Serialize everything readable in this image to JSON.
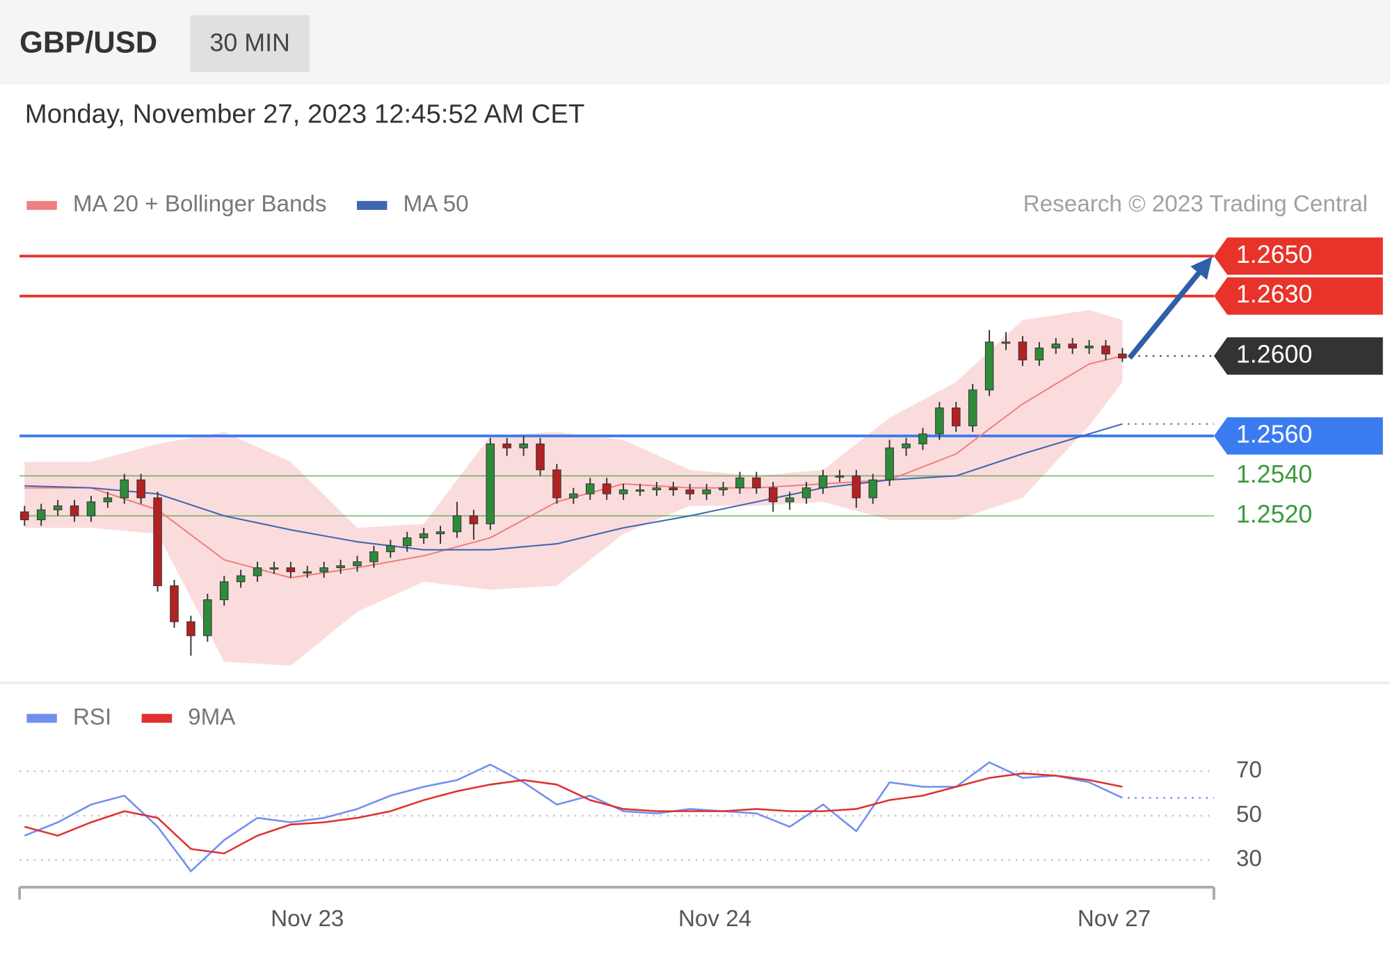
{
  "header": {
    "symbol": "GBP/USD",
    "interval": "30 MIN",
    "timestamp": "Monday, November 27, 2023 12:45:52 AM CET"
  },
  "chart_data": [
    {
      "type": "candlestick",
      "copyright": "Research © 2023 Trading Central",
      "xlim": [
        -0.3,
        71.5
      ],
      "ylim": [
        1.244,
        1.2658
      ],
      "up_color": "#2e8b3a",
      "down_color": "#b22222",
      "open": [
        1.2522,
        1.2518,
        1.2523,
        1.2525,
        1.252,
        1.2527,
        1.2529,
        1.2538,
        1.2529,
        1.2485,
        1.2467,
        1.246,
        1.2478,
        1.2487,
        1.249,
        1.2494,
        1.2494,
        1.2492,
        1.2492,
        1.2494,
        1.2495,
        1.2497,
        1.2502,
        1.2505,
        1.2509,
        1.2511,
        1.2512,
        1.252,
        1.2516,
        1.2556,
        1.2554,
        1.2556,
        1.2543,
        1.2529,
        1.2531,
        1.2536,
        1.2531,
        1.2533,
        1.2533,
        1.2534,
        1.2533,
        1.2531,
        1.2533,
        1.2534,
        1.2539,
        1.2534,
        1.2527,
        1.2529,
        1.2534,
        1.254,
        1.254,
        1.2529,
        1.2538,
        1.2554,
        1.2556,
        1.2561,
        1.2574,
        1.2565,
        1.2583,
        1.2607,
        1.2607,
        1.2598,
        1.2604,
        1.2606,
        1.2604,
        1.2605,
        1.2601
      ],
      "high": [
        1.2525,
        1.2526,
        1.2528,
        1.2528,
        1.253,
        1.2532,
        1.2541,
        1.2541,
        1.2532,
        1.2488,
        1.247,
        1.2481,
        1.249,
        1.2493,
        1.2497,
        1.2497,
        1.2497,
        1.2495,
        1.2497,
        1.2498,
        1.25,
        1.2505,
        1.2508,
        1.2512,
        1.2514,
        1.2515,
        1.2527,
        1.2523,
        1.2559,
        1.2559,
        1.256,
        1.2559,
        1.2546,
        1.2534,
        1.2539,
        1.2539,
        1.2536,
        1.2536,
        1.2537,
        1.2537,
        1.2536,
        1.2536,
        1.2537,
        1.2542,
        1.2542,
        1.2537,
        1.2532,
        1.2537,
        1.2543,
        1.2543,
        1.2543,
        1.2541,
        1.2558,
        1.2559,
        1.2564,
        1.2577,
        1.2577,
        1.2586,
        1.2613,
        1.2612,
        1.261,
        1.2607,
        1.2609,
        1.2609,
        1.2608,
        1.2608,
        1.2604
      ],
      "low": [
        1.2515,
        1.2515,
        1.252,
        1.2517,
        1.2517,
        1.2524,
        1.2526,
        1.2526,
        1.2482,
        1.2464,
        1.245,
        1.2457,
        1.2475,
        1.2484,
        1.2487,
        1.2491,
        1.2489,
        1.2489,
        1.2489,
        1.2491,
        1.2492,
        1.2494,
        1.2499,
        1.2502,
        1.2506,
        1.2506,
        1.2509,
        1.2508,
        1.2513,
        1.255,
        1.255,
        1.254,
        1.2526,
        1.2526,
        1.2528,
        1.2528,
        1.2528,
        1.253,
        1.253,
        1.253,
        1.2528,
        1.2528,
        1.253,
        1.2531,
        1.2531,
        1.2522,
        1.2523,
        1.2526,
        1.2531,
        1.2537,
        1.2524,
        1.2526,
        1.2535,
        1.255,
        1.2553,
        1.2558,
        1.2562,
        1.2562,
        1.258,
        1.2603,
        1.2595,
        1.2595,
        1.2601,
        1.2601,
        1.2601,
        1.2598,
        1.2597
      ],
      "close": [
        1.2518,
        1.2523,
        1.2525,
        1.252,
        1.2527,
        1.2529,
        1.2538,
        1.2529,
        1.2485,
        1.2467,
        1.246,
        1.2478,
        1.2487,
        1.249,
        1.2494,
        1.2494,
        1.2492,
        1.2492,
        1.2494,
        1.2495,
        1.2497,
        1.2502,
        1.2505,
        1.2509,
        1.2511,
        1.2512,
        1.252,
        1.2516,
        1.2556,
        1.2554,
        1.2556,
        1.2543,
        1.2529,
        1.2531,
        1.2536,
        1.2531,
        1.2533,
        1.2533,
        1.2534,
        1.2533,
        1.2531,
        1.2533,
        1.2534,
        1.2539,
        1.2534,
        1.2527,
        1.2529,
        1.2534,
        1.254,
        1.254,
        1.2529,
        1.2538,
        1.2554,
        1.2556,
        1.2561,
        1.2574,
        1.2565,
        1.2583,
        1.2607,
        1.2607,
        1.2598,
        1.2604,
        1.2606,
        1.2604,
        1.2605,
        1.2601,
        1.2599
      ],
      "overlays": [
        {
          "name": "MA 20 + Bollinger Bands",
          "color": "#f07f7f",
          "band_color": "#fbdcdc",
          "x": [
            0,
            4,
            8,
            12,
            16,
            20,
            24,
            28,
            32,
            36,
            40,
            44,
            48,
            52,
            56,
            60,
            64,
            66
          ],
          "values": [
            1.2534,
            1.2534,
            1.2523,
            1.2498,
            1.2489,
            1.2494,
            1.25,
            1.2509,
            1.2527,
            1.2536,
            1.2534,
            1.2534,
            1.2536,
            1.2538,
            1.2551,
            1.2576,
            1.2596,
            1.26
          ],
          "upper": [
            1.2547,
            1.2547,
            1.2556,
            1.2562,
            1.2547,
            1.2514,
            1.2516,
            1.256,
            1.2562,
            1.2558,
            1.2543,
            1.254,
            1.2543,
            1.2569,
            1.2587,
            1.2618,
            1.2623,
            1.2618
          ],
          "lower": [
            1.2514,
            1.2514,
            1.2511,
            1.2447,
            1.2445,
            1.2472,
            1.2487,
            1.2483,
            1.2485,
            1.2511,
            1.2525,
            1.2525,
            1.2527,
            1.2518,
            1.2518,
            1.2529,
            1.2565,
            1.2587
          ]
        },
        {
          "name": "MA 50",
          "color": "#3f66b0",
          "x": [
            0,
            4,
            8,
            12,
            16,
            20,
            24,
            28,
            32,
            36,
            40,
            44,
            48,
            52,
            56,
            60,
            64,
            66
          ],
          "values": [
            1.2535,
            1.2534,
            1.2531,
            1.252,
            1.2513,
            1.2507,
            1.2503,
            1.2503,
            1.2506,
            1.2514,
            1.252,
            1.2527,
            1.2534,
            1.2538,
            1.254,
            1.2551,
            1.2561,
            1.2566
          ]
        }
      ],
      "levels": [
        {
          "value": 1.265,
          "label": "1.2650",
          "color": "#e8332a",
          "style": "solid-tag"
        },
        {
          "value": 1.263,
          "label": "1.2630",
          "color": "#e8332a",
          "style": "solid-tag"
        },
        {
          "value": 1.26,
          "label": "1.2600",
          "color": "#333333",
          "style": "dotted-tag"
        },
        {
          "value": 1.256,
          "label": "1.2560",
          "color": "#3b7bf0",
          "style": "solid-tag"
        },
        {
          "value": 1.254,
          "label": "1.2540",
          "color": "#3c9a3c",
          "style": "plain"
        },
        {
          "value": 1.252,
          "label": "1.2520",
          "color": "#3c9a3c",
          "style": "plain"
        }
      ]
    },
    {
      "type": "line",
      "x": [
        0,
        2,
        4,
        6,
        8,
        10,
        12,
        14,
        16,
        18,
        20,
        22,
        24,
        26,
        28,
        30,
        32,
        34,
        36,
        38,
        40,
        42,
        44,
        46,
        48,
        50,
        52,
        54,
        56,
        58,
        60,
        62,
        64,
        66
      ],
      "series": [
        {
          "name": "RSI",
          "color": "#6f8ff0",
          "values": [
            41,
            47,
            55,
            59,
            45,
            25,
            39,
            49,
            47,
            49,
            53,
            59,
            63,
            66,
            73,
            65,
            55,
            59,
            52,
            51,
            53,
            52,
            51,
            45,
            55,
            43,
            65,
            63,
            63,
            74,
            67,
            68,
            65,
            58
          ]
        },
        {
          "name": "9MA",
          "color": "#e03030",
          "values": [
            45,
            41,
            47,
            52,
            49,
            35,
            33,
            41,
            46,
            47,
            49,
            52,
            57,
            61,
            64,
            66,
            64,
            57,
            53,
            52,
            52,
            52,
            53,
            52,
            52,
            53,
            57,
            59,
            63,
            67,
            69,
            68,
            66,
            63
          ]
        }
      ],
      "ylim": [
        19,
        79
      ],
      "yticks": [
        70,
        50,
        30
      ],
      "grid": true,
      "xticks": [
        {
          "value": 17,
          "label": "Nov 23"
        },
        {
          "value": 41.5,
          "label": "Nov 24"
        },
        {
          "value": 65.5,
          "label": "Nov 27"
        }
      ]
    }
  ]
}
